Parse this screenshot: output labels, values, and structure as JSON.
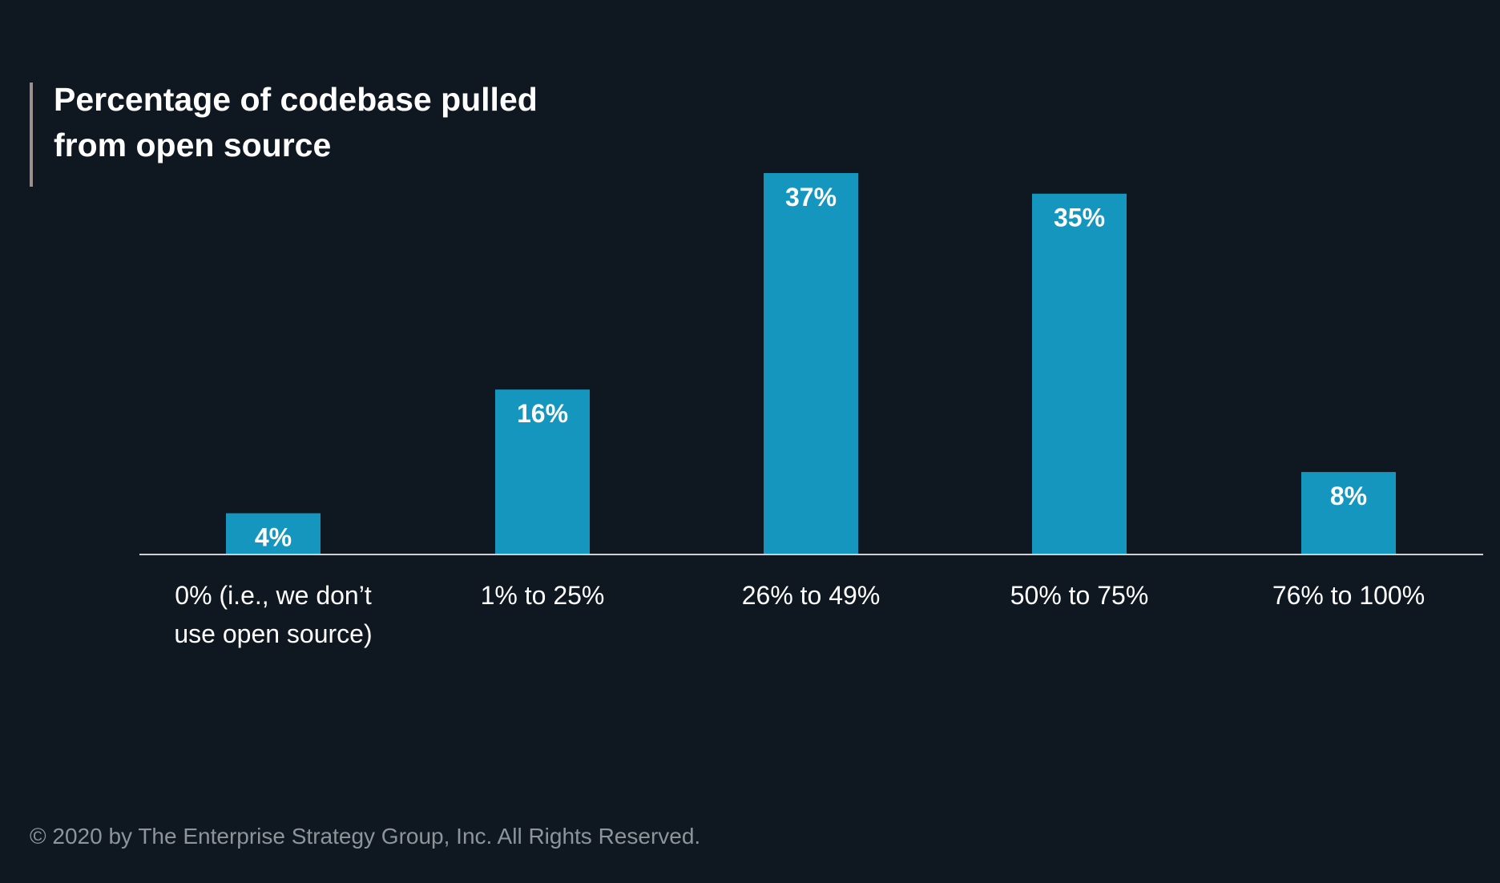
{
  "colors": {
    "background": "#0f1720",
    "bar": "#1596bf",
    "axis_line": "#d0d0d0",
    "text": "#ffffff",
    "footer_text": "#8d949b",
    "title_rule": "#9a8f8c"
  },
  "title_lines": [
    "Percentage of codebase pulled",
    "from open source"
  ],
  "footer": "© 2020 by The Enterprise Strategy Group, Inc. All Rights Reserved.",
  "chart_data": {
    "type": "bar",
    "title": "Percentage of codebase pulled from open source",
    "categories": [
      [
        "0% (i.e., we don’t",
        "use open source)"
      ],
      [
        "1% to 25%"
      ],
      [
        "26% to 49%"
      ],
      [
        "50% to 75%"
      ],
      [
        "76% to 100%"
      ]
    ],
    "values": [
      4,
      16,
      37,
      35,
      8
    ],
    "value_labels": [
      "4%",
      "16%",
      "37%",
      "35%",
      "8%"
    ],
    "unit": "%",
    "xlabel": "",
    "ylabel": "",
    "ylim": [
      0,
      37
    ],
    "grid": false,
    "legend": "none",
    "data_label_position": "inside-top"
  }
}
